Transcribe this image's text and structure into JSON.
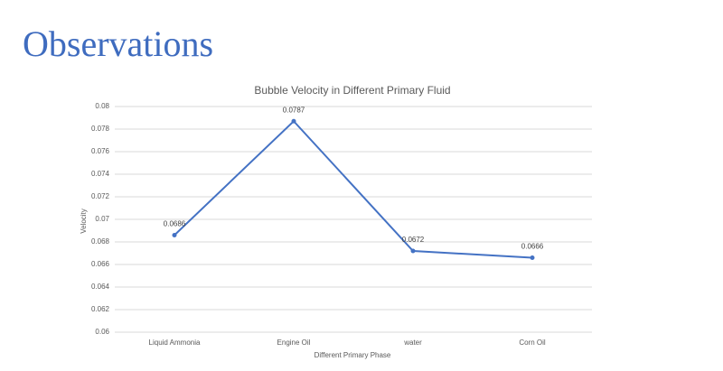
{
  "heading": "Observations",
  "chart_data": {
    "type": "line",
    "title": "Bubble Velocity in Different Primary Fluid",
    "x_label": "Different Primary Phase",
    "y_label": "Velocity",
    "categories": [
      "Liquid Ammonia",
      "Engine Oil",
      "water",
      "Corn Oil"
    ],
    "series": [
      {
        "name": "Velocity",
        "color": "#4472c4",
        "values": [
          0.0686,
          0.0787,
          0.0672,
          0.0666
        ]
      }
    ],
    "ylim": [
      0.06,
      0.08
    ],
    "yticks": [
      0.06,
      0.062,
      0.064,
      0.066,
      0.068,
      0.07,
      0.072,
      0.074,
      0.076,
      0.078,
      0.08
    ],
    "grid": true,
    "data_labels": true
  }
}
